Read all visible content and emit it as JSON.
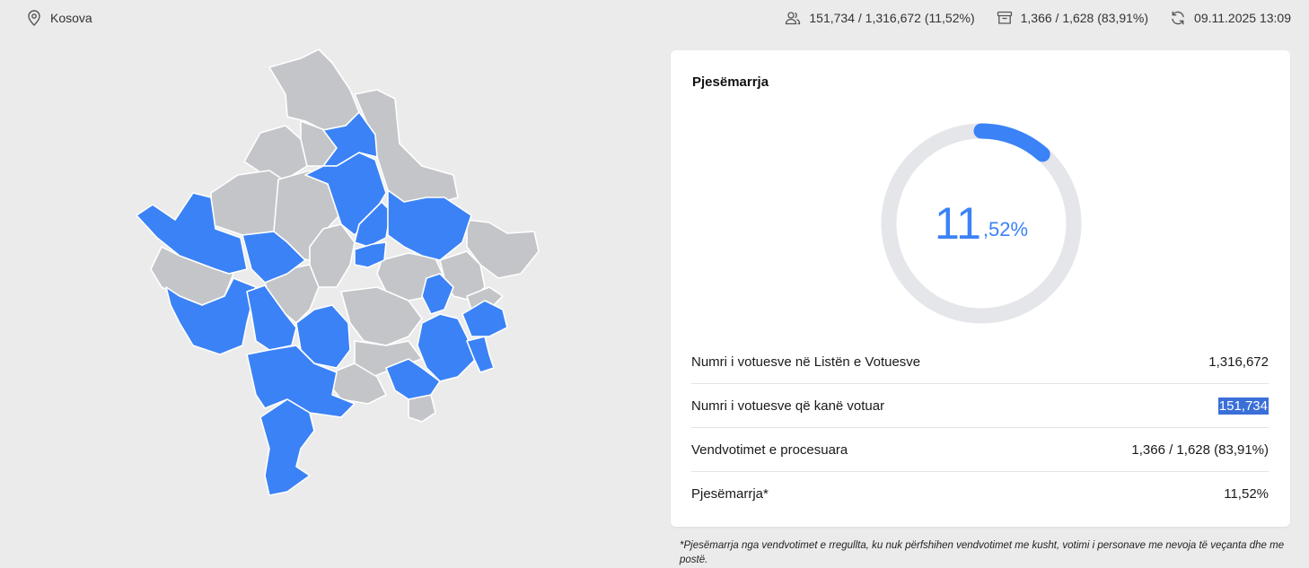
{
  "header": {
    "location": "Kosova",
    "voters_stat": "151,734 / 1,316,672 (11,52%)",
    "stations_stat": "1,366 / 1,628 (83,91%)",
    "updated": "09.11.2025 13:09"
  },
  "card": {
    "title": "Pjesëmarrja",
    "turnout_integer": "11",
    "turnout_decimal": ",52%",
    "turnout_fraction": 0.1152,
    "rows": [
      {
        "label": "Numri i votuesve në Listën e Votuesve",
        "value": "1,316,672"
      },
      {
        "label": "Numri i votuesve që kanë votuar",
        "value": "151,734"
      },
      {
        "label": "Vendvotimet e procesuara",
        "value": "1,366 / 1,628 (83,91%)"
      },
      {
        "label": "Pjesëmarrja*",
        "value": "11,52%"
      }
    ]
  },
  "footnote": "*Pjesëmarrja nga vendvotimet e rregullta, ku nuk përfshihen vendvotimet me kusht, votimi i personave me nevoja të veçanta dhe me postë.",
  "colors": {
    "highlight": "#3b82f6",
    "muted": "#c4c5c9",
    "track": "#e5e6ea",
    "background": "#ebebeb"
  },
  "icons": {
    "location": "map-pin-icon",
    "voters": "users-icon",
    "stations": "ballot-box-icon",
    "refresh": "refresh-icon"
  }
}
